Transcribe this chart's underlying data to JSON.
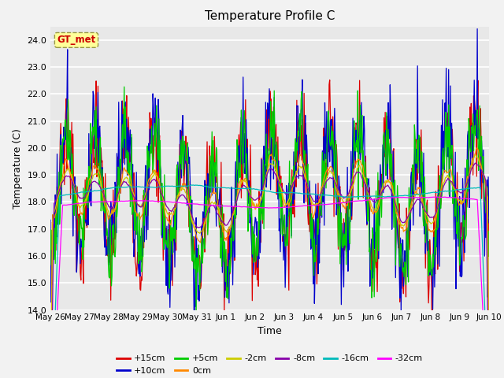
{
  "title": "Temperature Profile C",
  "xlabel": "Time",
  "ylabel": "Temperature (C)",
  "ylim": [
    14.0,
    24.5
  ],
  "yticks": [
    14.0,
    15.0,
    16.0,
    17.0,
    18.0,
    19.0,
    20.0,
    21.0,
    22.0,
    23.0,
    24.0
  ],
  "annotation": "GT_met",
  "fig_bg": "#f2f2f2",
  "axes_bg": "#e8e8e8",
  "series": [
    {
      "label": "+15cm",
      "color": "#dd0000",
      "amp": 2.2,
      "noise": 0.9,
      "smooth": 1
    },
    {
      "label": "+10cm",
      "color": "#0000cc",
      "amp": 2.3,
      "noise": 1.0,
      "smooth": 1
    },
    {
      "label": "+5cm",
      "color": "#00cc00",
      "amp": 2.1,
      "noise": 0.8,
      "smooth": 1
    },
    {
      "label": "0cm",
      "color": "#ff8800",
      "amp": 0.9,
      "noise": 0.3,
      "smooth": 6
    },
    {
      "label": "-2cm",
      "color": "#cccc00",
      "amp": 0.7,
      "noise": 0.2,
      "smooth": 8
    },
    {
      "label": "-8cm",
      "color": "#8800aa",
      "amp": 0.5,
      "noise": 0.15,
      "smooth": 12
    },
    {
      "label": "-16cm",
      "color": "#00bbbb",
      "amp": 0.35,
      "noise": 0.1,
      "smooth": 18
    },
    {
      "label": "-32cm",
      "color": "#ff00ff",
      "amp": 0.15,
      "noise": 0.08,
      "smooth": 25
    }
  ],
  "date_labels": [
    "May 26",
    "May 27",
    "May 28",
    "May 29",
    "May 30",
    "May 31",
    "Jun 1",
    "Jun 2",
    "Jun 3",
    "Jun 4",
    "Jun 5",
    "Jun 6",
    "Jun 7",
    "Jun 8",
    "Jun 9",
    "Jun 10"
  ],
  "n_days": 15,
  "pts_per_day": 48,
  "seed": 37
}
